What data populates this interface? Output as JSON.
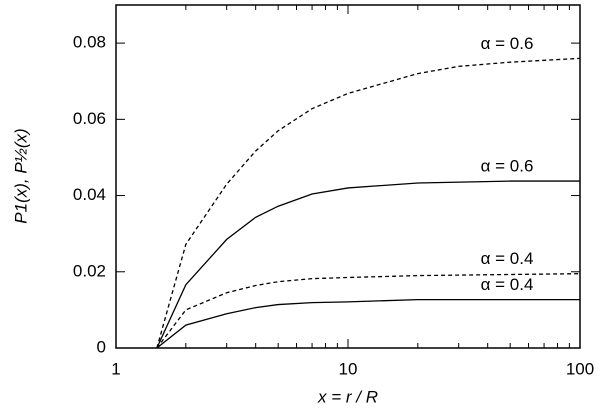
{
  "chart_data": {
    "type": "line",
    "xlabel": "x = r / R",
    "ylabel": "P1(x), P½(x)",
    "xscale": "log",
    "xlim": [
      1,
      100
    ],
    "xticks": [
      1,
      10,
      100
    ],
    "xminorticks": [
      2,
      3,
      4,
      5,
      6,
      7,
      8,
      9,
      20,
      30,
      40,
      50,
      60,
      70,
      80,
      90
    ],
    "ylim": [
      0,
      0.09
    ],
    "yticks": [
      0,
      0.02,
      0.04,
      0.06,
      0.08
    ],
    "series": [
      {
        "name": "α = 0.6",
        "color": "#000000",
        "dashed": true,
        "x": [
          1.5,
          2,
          3,
          4,
          5,
          7,
          10,
          20,
          30,
          50,
          100
        ],
        "values": [
          0,
          0.0272,
          0.043,
          0.0517,
          0.057,
          0.0628,
          0.0668,
          0.072,
          0.0739,
          0.075,
          0.076
        ]
      },
      {
        "name": "α = 0.6",
        "color": "#000000",
        "dashed": false,
        "x": [
          1.5,
          2,
          3,
          4,
          5,
          7,
          10,
          20,
          50,
          100
        ],
        "values": [
          0,
          0.0166,
          0.0285,
          0.0343,
          0.0372,
          0.0404,
          0.042,
          0.0433,
          0.0438,
          0.0438
        ]
      },
      {
        "name": "α = 0.4",
        "color": "#000000",
        "dashed": true,
        "x": [
          1.5,
          2,
          3,
          4,
          5,
          7,
          10,
          20,
          100
        ],
        "values": [
          0,
          0.01,
          0.0145,
          0.0164,
          0.0174,
          0.0182,
          0.0185,
          0.019,
          0.0195
        ]
      },
      {
        "name": "α = 0.4",
        "color": "#000000",
        "dashed": false,
        "x": [
          1.5,
          2,
          3,
          4,
          5,
          7,
          10,
          20,
          100
        ],
        "values": [
          0,
          0.006,
          0.009,
          0.0106,
          0.0114,
          0.0119,
          0.0121,
          0.0127,
          0.0127
        ]
      }
    ]
  }
}
